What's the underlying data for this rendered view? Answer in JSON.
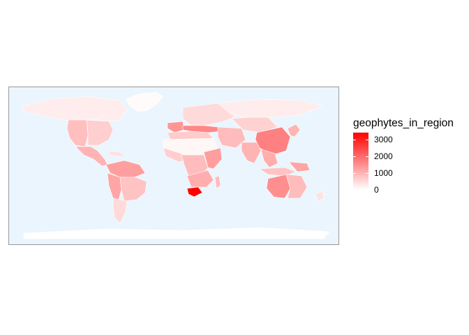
{
  "legend": {
    "title": "geophytes_in_region",
    "min_color": "#ffffff",
    "max_color": "#ff0000",
    "ticks": [
      {
        "label": "3000",
        "value": 3000
      },
      {
        "label": "2000",
        "value": 2000
      },
      {
        "label": "1000",
        "value": 1000
      },
      {
        "label": "0",
        "value": 0
      }
    ],
    "range": [
      0,
      3400
    ]
  },
  "map": {
    "ocean_color": "#eaf5fd",
    "border_color": "#9a9a9a",
    "region_outline_color": "#ffffff",
    "regions": [
      {
        "name": "Greenland",
        "value": 60
      },
      {
        "name": "Canada / Alaska",
        "value": 250
      },
      {
        "name": "USA East",
        "value": 650
      },
      {
        "name": "USA West",
        "value": 850
      },
      {
        "name": "Mexico / Central America",
        "value": 1000
      },
      {
        "name": "Caribbean",
        "value": 400
      },
      {
        "name": "Northern South America",
        "value": 1300
      },
      {
        "name": "Brazil",
        "value": 800
      },
      {
        "name": "Andes",
        "value": 1200
      },
      {
        "name": "Chile / Argentina",
        "value": 500
      },
      {
        "name": "Europe",
        "value": 500
      },
      {
        "name": "Iberia",
        "value": 1400
      },
      {
        "name": "Mediterranean",
        "value": 1600
      },
      {
        "name": "North Africa",
        "value": 700
      },
      {
        "name": "Sahara",
        "value": 120
      },
      {
        "name": "West Africa",
        "value": 650
      },
      {
        "name": "Central Africa",
        "value": 900
      },
      {
        "name": "East Africa",
        "value": 1300
      },
      {
        "name": "Southern Africa",
        "value": 1100
      },
      {
        "name": "Cape Region",
        "value": 3400
      },
      {
        "name": "Madagascar",
        "value": 900
      },
      {
        "name": "Middle East",
        "value": 900
      },
      {
        "name": "Central Asia",
        "value": 600
      },
      {
        "name": "Siberia",
        "value": 250
      },
      {
        "name": "India",
        "value": 1000
      },
      {
        "name": "China",
        "value": 1700
      },
      {
        "name": "SE Asia",
        "value": 1100
      },
      {
        "name": "Japan / Korea",
        "value": 1000
      },
      {
        "name": "Indonesia",
        "value": 800
      },
      {
        "name": "New Guinea",
        "value": 1200
      },
      {
        "name": "Western Australia",
        "value": 1500
      },
      {
        "name": "Eastern Australia",
        "value": 900
      },
      {
        "name": "New Zealand",
        "value": 400
      },
      {
        "name": "Antarctica",
        "value": 0
      }
    ]
  }
}
